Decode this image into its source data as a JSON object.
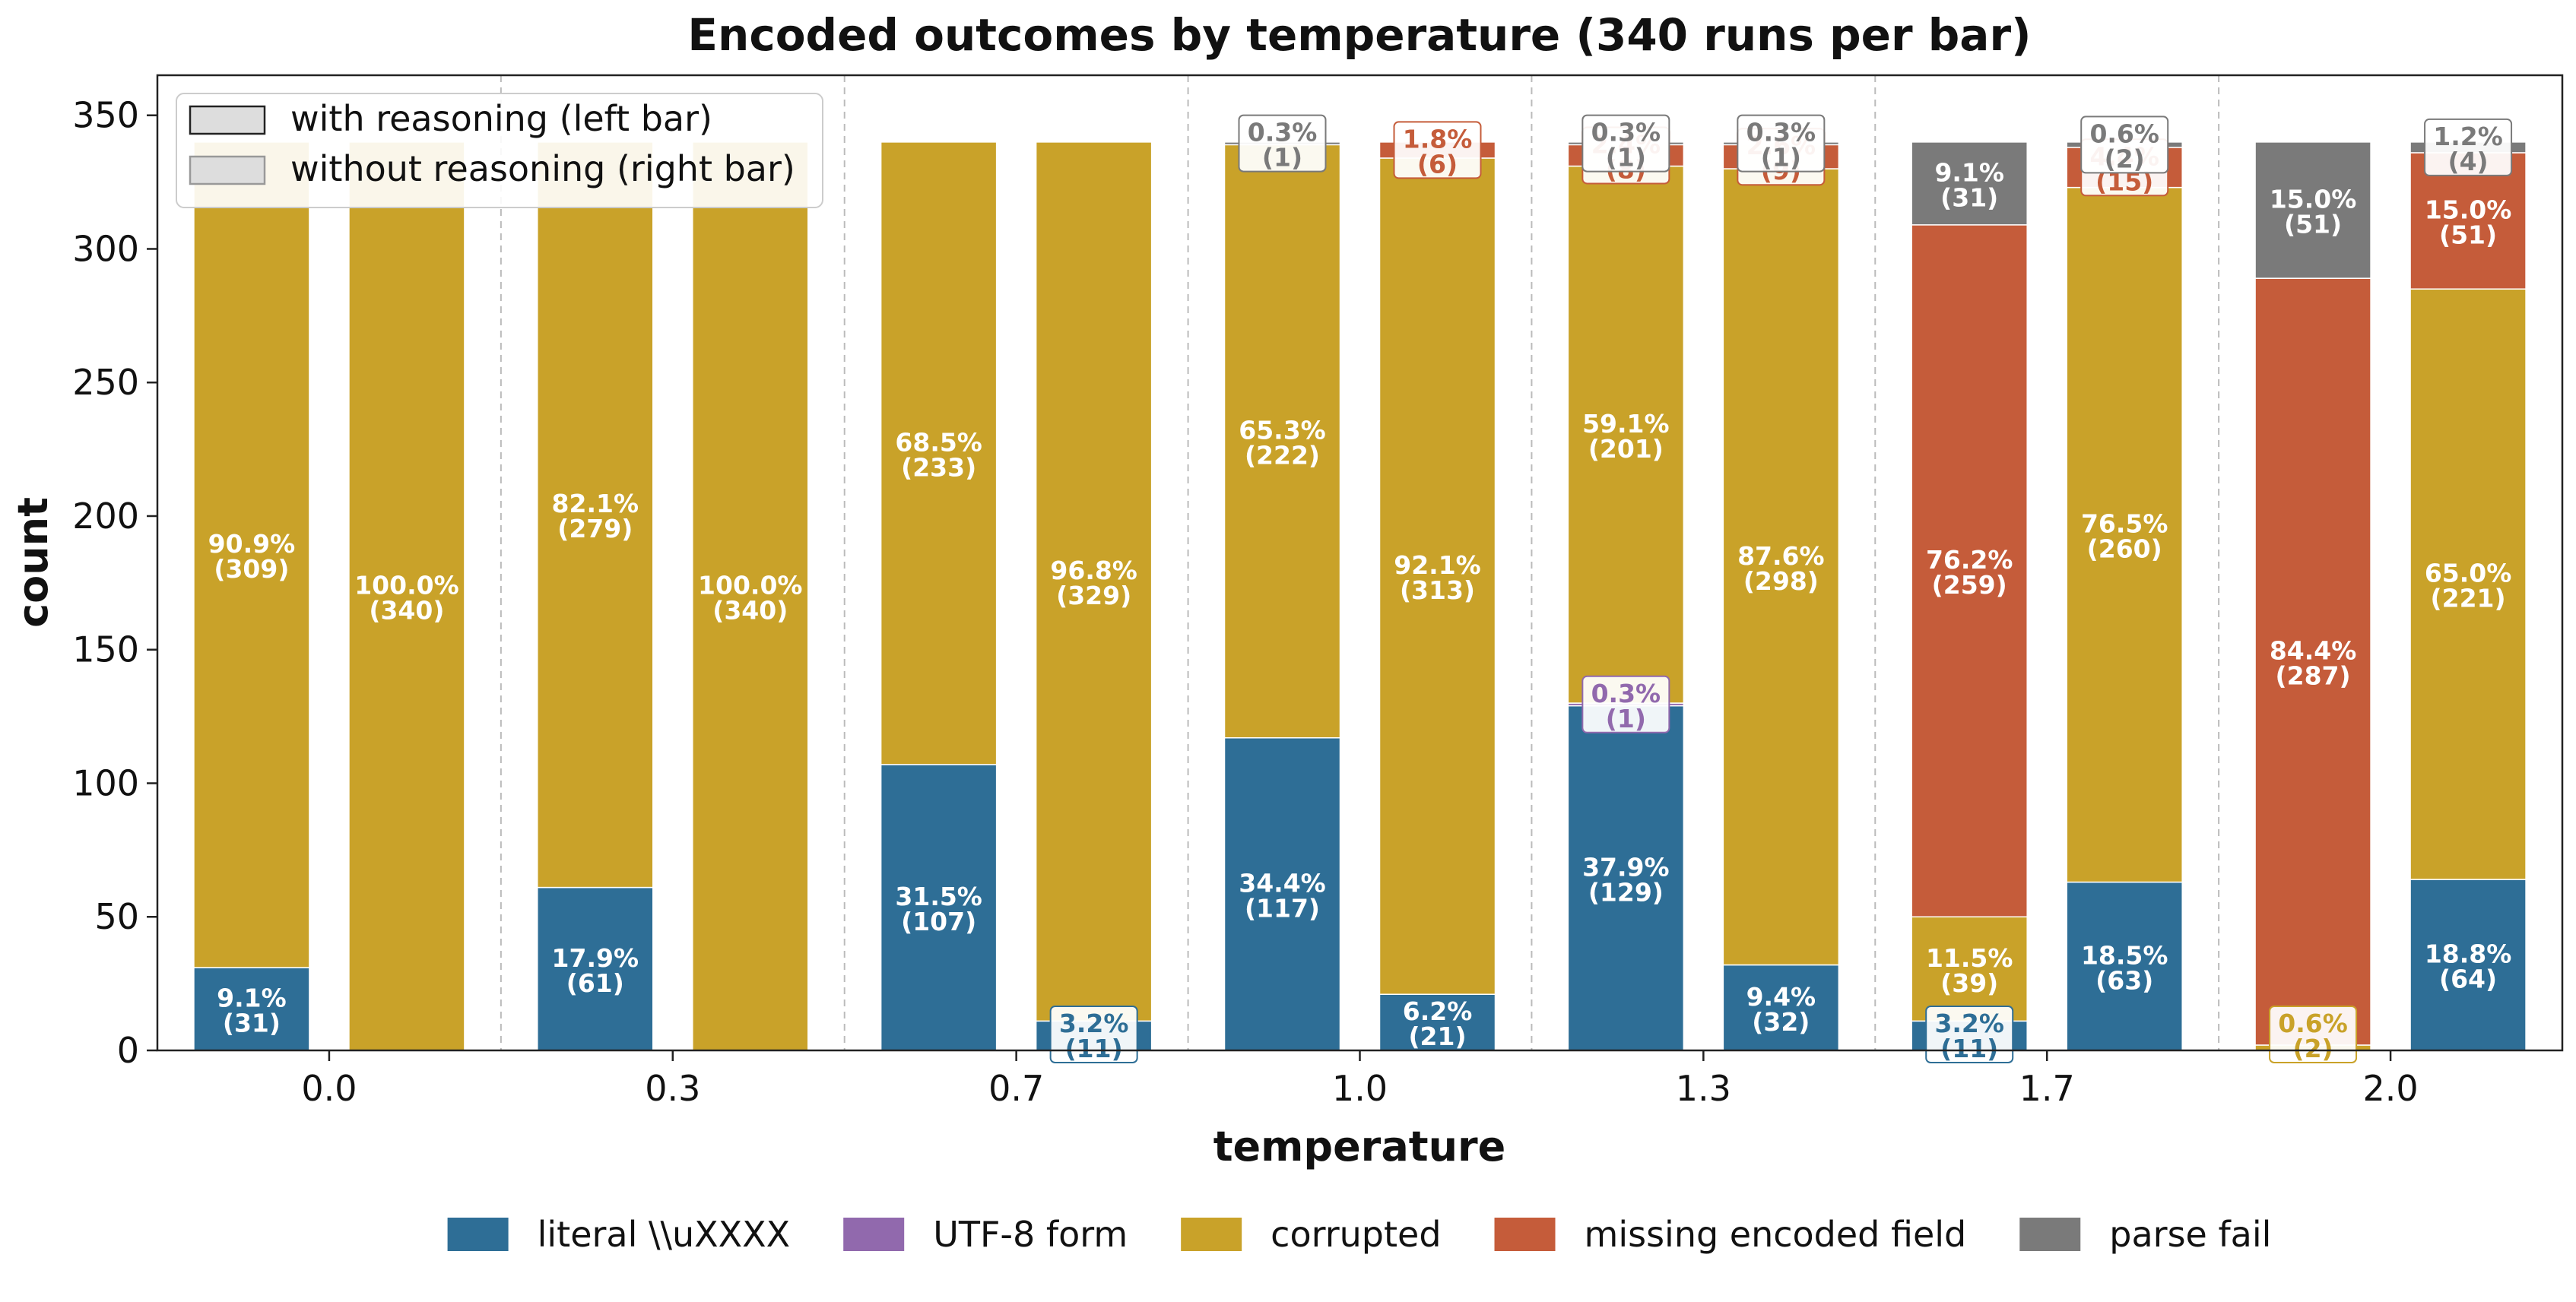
{
  "chart_data": {
    "type": "bar",
    "stacked": true,
    "title": "Encoded outcomes by temperature (340 runs per bar)",
    "xlabel": "temperature",
    "ylabel": "count",
    "ylim": [
      0,
      365
    ],
    "yticks": [
      0,
      50,
      100,
      150,
      200,
      250,
      300,
      350
    ],
    "categories": [
      "0.0",
      "0.3",
      "0.7",
      "1.0",
      "1.3",
      "1.7",
      "2.0"
    ],
    "grid": "vertical dashed separators between temperature groups",
    "bar_variants": [
      {
        "name": "with reasoning (left bar)",
        "position": "left"
      },
      {
        "name": "without reasoning (right bar)",
        "position": "right"
      }
    ],
    "series": [
      {
        "name": "literal \\\\uXXXX",
        "color": "#2e6e96",
        "with_reasoning": [
          31,
          61,
          107,
          117,
          129,
          11,
          0
        ],
        "without_reasoning": [
          0,
          0,
          11,
          21,
          32,
          63,
          64
        ]
      },
      {
        "name": "UTF-8 form",
        "color": "#9169ad",
        "with_reasoning": [
          0,
          0,
          0,
          0,
          1,
          0,
          0
        ],
        "without_reasoning": [
          0,
          0,
          0,
          0,
          0,
          0,
          0
        ]
      },
      {
        "name": "corrupted",
        "color": "#c9a229",
        "with_reasoning": [
          309,
          279,
          233,
          222,
          201,
          39,
          2
        ],
        "without_reasoning": [
          340,
          340,
          329,
          313,
          298,
          260,
          221
        ]
      },
      {
        "name": "missing encoded field",
        "color": "#c55c3a",
        "with_reasoning": [
          0,
          0,
          0,
          0,
          8,
          259,
          287
        ],
        "without_reasoning": [
          0,
          0,
          0,
          6,
          9,
          15,
          51
        ]
      },
      {
        "name": "parse fail",
        "color": "#7a7a7a",
        "with_reasoning": [
          0,
          0,
          0,
          1,
          1,
          31,
          51
        ],
        "without_reasoning": [
          0,
          0,
          0,
          0,
          1,
          2,
          4
        ]
      }
    ],
    "segment_labels": {
      "with_reasoning": [
        [
          {
            "series": 0,
            "pct": "9.1%",
            "count": "(31)"
          },
          {
            "series": 2,
            "pct": "90.9%",
            "count": "(309)"
          }
        ],
        [
          {
            "series": 0,
            "pct": "17.9%",
            "count": "(61)"
          },
          {
            "series": 2,
            "pct": "82.1%",
            "count": "(279)"
          }
        ],
        [
          {
            "series": 0,
            "pct": "31.5%",
            "count": "(107)"
          },
          {
            "series": 2,
            "pct": "68.5%",
            "count": "(233)"
          }
        ],
        [
          {
            "series": 0,
            "pct": "34.4%",
            "count": "(117)"
          },
          {
            "series": 2,
            "pct": "65.3%",
            "count": "(222)"
          },
          {
            "series": 4,
            "pct": "0.3%",
            "count": "(1)",
            "boxed": true
          }
        ],
        [
          {
            "series": 0,
            "pct": "37.9%",
            "count": "(129)"
          },
          {
            "series": 1,
            "pct": "0.3%",
            "count": "(1)",
            "boxed": true
          },
          {
            "series": 2,
            "pct": "59.1%",
            "count": "(201)"
          },
          {
            "series": 3,
            "pct": "2.4%",
            "count": "(8)",
            "boxed": true
          },
          {
            "series": 4,
            "pct": "0.3%",
            "count": "(1)",
            "boxed": true
          }
        ],
        [
          {
            "series": 0,
            "pct": "3.2%",
            "count": "(11)",
            "boxed": true
          },
          {
            "series": 2,
            "pct": "11.5%",
            "count": "(39)"
          },
          {
            "series": 3,
            "pct": "76.2%",
            "count": "(259)"
          },
          {
            "series": 4,
            "pct": "9.1%",
            "count": "(31)"
          }
        ],
        [
          {
            "series": 2,
            "pct": "0.6%",
            "count": "(2)",
            "boxed": true
          },
          {
            "series": 3,
            "pct": "84.4%",
            "count": "(287)"
          },
          {
            "series": 4,
            "pct": "15.0%",
            "count": "(51)"
          }
        ]
      ],
      "without_reasoning": [
        [
          {
            "series": 2,
            "pct": "100.0%",
            "count": "(340)"
          }
        ],
        [
          {
            "series": 2,
            "pct": "100.0%",
            "count": "(340)"
          }
        ],
        [
          {
            "series": 0,
            "pct": "3.2%",
            "count": "(11)",
            "boxed": true
          },
          {
            "series": 2,
            "pct": "96.8%",
            "count": "(329)"
          }
        ],
        [
          {
            "series": 0,
            "pct": "6.2%",
            "count": "(21)"
          },
          {
            "series": 2,
            "pct": "92.1%",
            "count": "(313)"
          },
          {
            "series": 3,
            "pct": "1.8%",
            "count": "(6)",
            "boxed": true
          }
        ],
        [
          {
            "series": 0,
            "pct": "9.4%",
            "count": "(32)"
          },
          {
            "series": 2,
            "pct": "87.6%",
            "count": "(298)"
          },
          {
            "series": 3,
            "pct": "2.6%",
            "count": "(9)",
            "boxed": true
          },
          {
            "series": 4,
            "pct": "0.3%",
            "count": "(1)",
            "boxed": true
          }
        ],
        [
          {
            "series": 0,
            "pct": "18.5%",
            "count": "(63)"
          },
          {
            "series": 2,
            "pct": "76.5%",
            "count": "(260)"
          },
          {
            "series": 3,
            "pct": "4.4%",
            "count": "(15)",
            "boxed": true
          },
          {
            "series": 4,
            "pct": "0.6%",
            "count": "(2)",
            "boxed": true
          }
        ],
        [
          {
            "series": 0,
            "pct": "18.8%",
            "count": "(64)"
          },
          {
            "series": 2,
            "pct": "65.0%",
            "count": "(221)"
          },
          {
            "series": 3,
            "pct": "15.0%",
            "count": "(51)"
          },
          {
            "series": 4,
            "pct": "1.2%",
            "count": "(4)",
            "boxed": true
          }
        ]
      ]
    },
    "legend_variants_placement": "upper-left inside plot",
    "legend_series_placement": "bottom-center below plot"
  }
}
